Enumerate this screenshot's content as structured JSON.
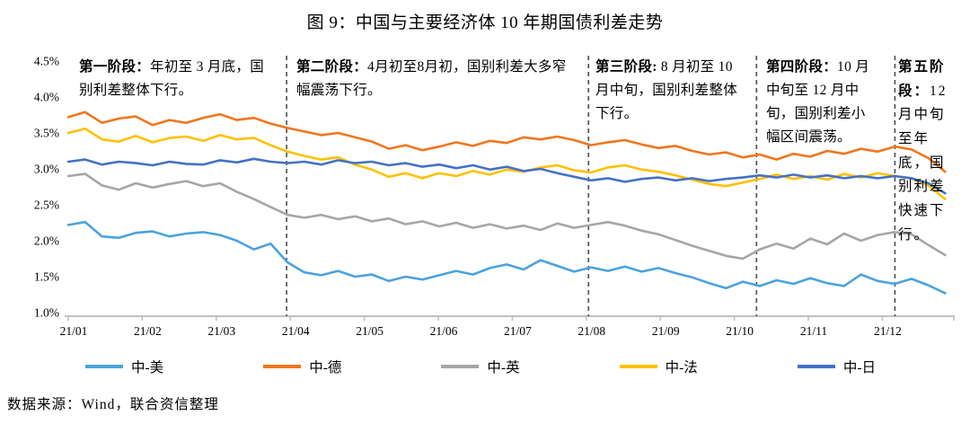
{
  "title": "图 9：中国与主要经济体 10 年期国债利差走势",
  "source_note": "数据来源：Wind，联合资信整理",
  "chart_data": {
    "type": "line",
    "title": "图 9：中国与主要经济体 10 年期国债利差走势",
    "unit": "%",
    "grid": false,
    "legend_position": "bottom",
    "y_axis": {
      "range": [
        1.0,
        4.5
      ],
      "ticks": [
        "4.5%",
        "4.0%",
        "3.5%",
        "3.0%",
        "2.5%",
        "2.0%",
        "1.5%",
        "1.0%"
      ],
      "tick_values": [
        4.5,
        4.0,
        3.5,
        3.0,
        2.5,
        2.0,
        1.5,
        1.0
      ]
    },
    "x_axis": {
      "ticks": [
        "21/01",
        "21/02",
        "21/03",
        "21/04",
        "21/05",
        "21/06",
        "21/07",
        "21/08",
        "21/09",
        "21/10",
        "21/11",
        "21/12"
      ]
    },
    "dashed_boundaries_month": [
      2.95,
      7.03,
      9.3,
      11.17
    ],
    "phases": [
      {
        "label": "第一阶段：",
        "text": "年初至 3 月底，国别利差整体下行。"
      },
      {
        "label": "第二阶段：",
        "text": "4月初至8月初，国别利差大多窄幅震荡下行。"
      },
      {
        "label": "第三阶段: ",
        "text": "8 月初至 10 月中旬，国别利差整体下行。"
      },
      {
        "label": "第四阶段：",
        "text": "10 月中旬至 12 月中旬，国别利差小幅区间震荡。"
      },
      {
        "label": "第五阶段：",
        "text": "12 月中旬至年底，国别利差快速下行。"
      }
    ],
    "series": [
      {
        "id": "cn-us",
        "name": "中-美",
        "color": "#4BA3DC",
        "values": [
          2.22,
          2.26,
          2.06,
          2.04,
          2.11,
          2.13,
          2.06,
          2.1,
          2.12,
          2.08,
          2.0,
          1.88,
          1.96,
          1.7,
          1.56,
          1.52,
          1.58,
          1.5,
          1.53,
          1.44,
          1.5,
          1.46,
          1.52,
          1.58,
          1.53,
          1.62,
          1.67,
          1.6,
          1.73,
          1.65,
          1.57,
          1.63,
          1.58,
          1.64,
          1.57,
          1.62,
          1.55,
          1.49,
          1.41,
          1.34,
          1.43,
          1.37,
          1.45,
          1.4,
          1.48,
          1.41,
          1.37,
          1.53,
          1.44,
          1.4,
          1.47,
          1.38,
          1.27
        ]
      },
      {
        "id": "cn-de",
        "name": "中-德",
        "color": "#F0761D",
        "values": [
          3.72,
          3.79,
          3.64,
          3.7,
          3.73,
          3.61,
          3.68,
          3.64,
          3.71,
          3.76,
          3.68,
          3.71,
          3.63,
          3.57,
          3.52,
          3.47,
          3.5,
          3.44,
          3.38,
          3.28,
          3.33,
          3.26,
          3.31,
          3.37,
          3.32,
          3.39,
          3.36,
          3.44,
          3.41,
          3.45,
          3.4,
          3.33,
          3.37,
          3.4,
          3.34,
          3.29,
          3.32,
          3.25,
          3.2,
          3.23,
          3.16,
          3.2,
          3.13,
          3.21,
          3.17,
          3.25,
          3.21,
          3.28,
          3.24,
          3.31,
          3.27,
          3.15,
          2.96
        ]
      },
      {
        "id": "cn-uk",
        "name": "中-英",
        "color": "#A6A6A6",
        "values": [
          2.9,
          2.93,
          2.77,
          2.71,
          2.8,
          2.74,
          2.79,
          2.83,
          2.76,
          2.8,
          2.68,
          2.58,
          2.47,
          2.36,
          2.32,
          2.36,
          2.3,
          2.34,
          2.27,
          2.31,
          2.23,
          2.27,
          2.2,
          2.25,
          2.18,
          2.23,
          2.17,
          2.21,
          2.15,
          2.24,
          2.18,
          2.22,
          2.26,
          2.21,
          2.14,
          2.09,
          2.01,
          1.93,
          1.86,
          1.79,
          1.75,
          1.88,
          1.96,
          1.89,
          2.03,
          1.95,
          2.1,
          2.0,
          2.08,
          2.12,
          2.09,
          1.94,
          1.8
        ]
      },
      {
        "id": "cn-fr",
        "name": "中-法",
        "color": "#FFC000",
        "values": [
          3.5,
          3.56,
          3.41,
          3.38,
          3.46,
          3.37,
          3.43,
          3.45,
          3.39,
          3.47,
          3.41,
          3.43,
          3.33,
          3.24,
          3.18,
          3.13,
          3.16,
          3.06,
          2.99,
          2.89,
          2.94,
          2.87,
          2.94,
          2.9,
          2.97,
          2.92,
          2.99,
          2.96,
          3.02,
          3.05,
          2.98,
          2.95,
          3.02,
          3.05,
          2.99,
          2.96,
          2.91,
          2.85,
          2.79,
          2.76,
          2.81,
          2.86,
          2.92,
          2.86,
          2.9,
          2.85,
          2.93,
          2.88,
          2.94,
          2.9,
          2.87,
          2.77,
          2.58
        ]
      },
      {
        "id": "cn-jp",
        "name": "中-日",
        "color": "#4472C4",
        "values": [
          3.1,
          3.13,
          3.06,
          3.1,
          3.08,
          3.05,
          3.1,
          3.07,
          3.06,
          3.12,
          3.09,
          3.14,
          3.1,
          3.08,
          3.1,
          3.06,
          3.12,
          3.08,
          3.1,
          3.05,
          3.08,
          3.03,
          3.06,
          3.01,
          3.05,
          2.99,
          3.03,
          2.97,
          3.0,
          2.94,
          2.89,
          2.84,
          2.87,
          2.82,
          2.86,
          2.88,
          2.84,
          2.87,
          2.83,
          2.86,
          2.88,
          2.91,
          2.88,
          2.92,
          2.88,
          2.91,
          2.87,
          2.9,
          2.87,
          2.9,
          2.87,
          2.8,
          2.66
        ]
      }
    ]
  }
}
